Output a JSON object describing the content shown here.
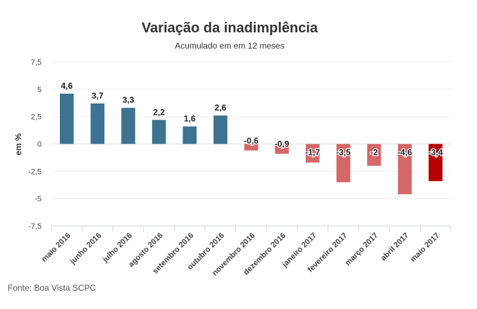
{
  "chart_data": {
    "type": "bar",
    "title": "Variação da inadimplência",
    "subtitle": "Acumulado em em 12 meses",
    "ylabel": "em %",
    "xlabel": "",
    "ylim": [
      -7.5,
      7.5
    ],
    "yticks": [
      -7.5,
      -5,
      -2.5,
      0,
      2.5,
      5,
      7.5
    ],
    "ytick_labels": [
      "-7,5",
      "-5",
      "-2,5",
      "0",
      "2,5",
      "5",
      "7,5"
    ],
    "grid": true,
    "categories": [
      "maio 2016",
      "junho 2016",
      "julho 2016",
      "agosto 2016",
      "setembro 2016",
      "outubro 2016",
      "novembro 2016",
      "dezembro 2016",
      "janeiro 2017",
      "fevereiro 2017",
      "março 2017",
      "abril 2017",
      "maio 2017"
    ],
    "values": [
      4.6,
      3.7,
      3.3,
      2.2,
      1.6,
      2.6,
      -0.6,
      -0.9,
      -1.7,
      -3.5,
      -2,
      -4.6,
      -3.4
    ],
    "value_labels": [
      "4,6",
      "3,7",
      "3,3",
      "2,2",
      "1,6",
      "2,6",
      "-0,6",
      "-0,9",
      "-1,7",
      "-3,5",
      "-2",
      "-4,6",
      "-3,4"
    ],
    "colors": {
      "positive": "#3d7390",
      "negative": "#d46868",
      "highlight": "#b40000"
    },
    "highlight_index": 12
  },
  "source": "Fonte: Boa Vista SCPC"
}
